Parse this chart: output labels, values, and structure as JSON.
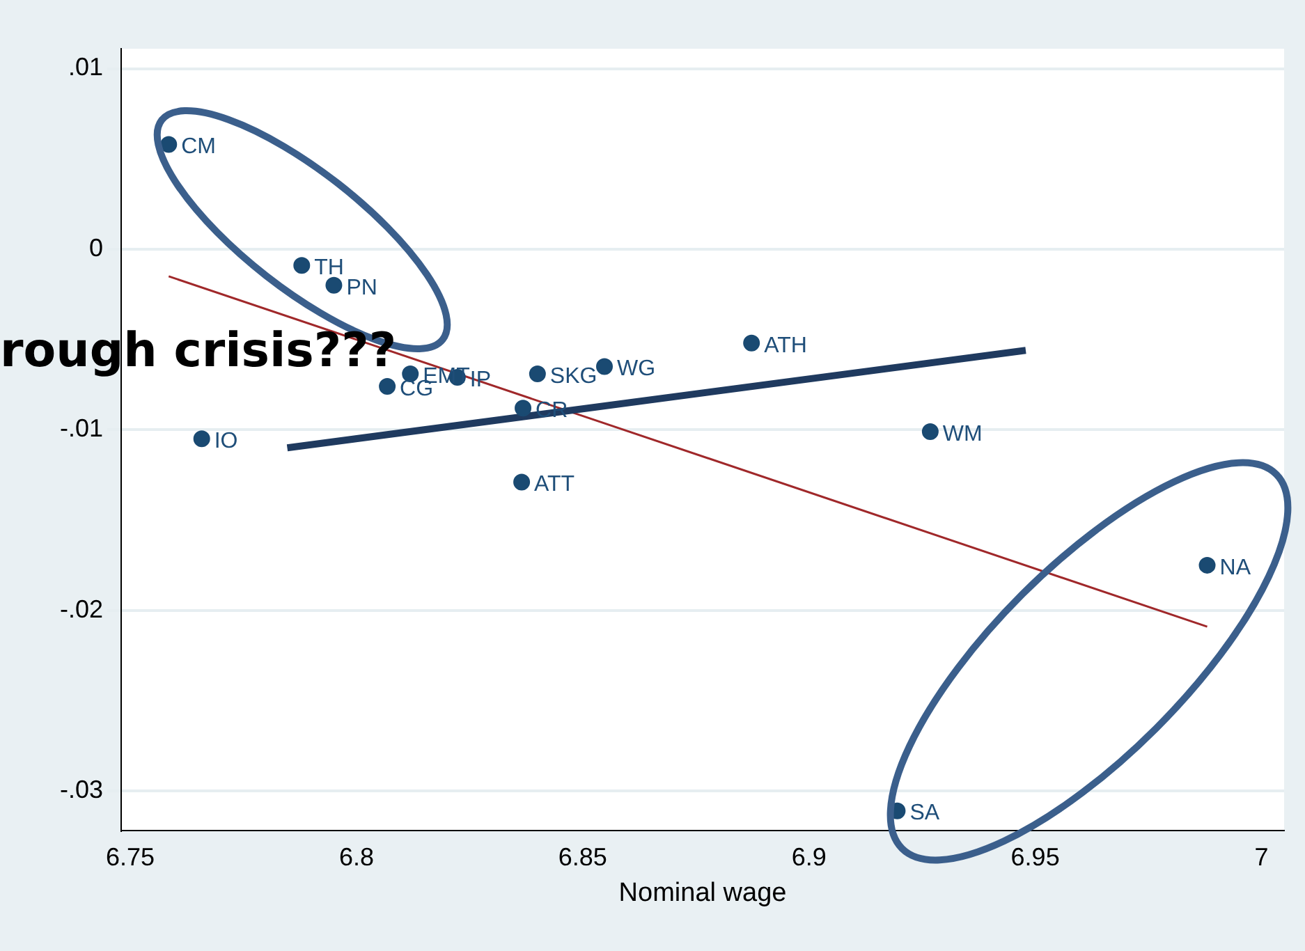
{
  "chart_data": {
    "type": "scatter",
    "xlabel": "Nominal wage",
    "xlim": [
      6.748,
      7.005
    ],
    "ylim": [
      -0.0322,
      0.0111
    ],
    "xticks": [
      6.75,
      6.8,
      6.85,
      6.9,
      6.95,
      7
    ],
    "yticks": [
      {
        "value": 0.01,
        "label": ".01"
      },
      {
        "value": 0,
        "label": "0"
      },
      {
        "value": -0.01,
        "label": "-.01"
      },
      {
        "value": -0.02,
        "label": "-.02"
      },
      {
        "value": -0.03,
        "label": "-.03"
      }
    ],
    "grid": "y",
    "legend": false,
    "marker": "circle",
    "series": [
      {
        "color": "#1a4a72",
        "x": [
          6.7585,
          6.7879,
          6.795,
          6.8119,
          6.8068,
          6.8223,
          6.84,
          6.8548,
          6.8368,
          6.7658,
          6.8365,
          6.8873,
          6.9268,
          6.988,
          6.9195
        ],
        "values": [
          0.0058,
          -0.0009,
          -0.002,
          -0.0069,
          -0.0076,
          -0.0071,
          -0.0069,
          -0.0065,
          -0.0088,
          -0.0105,
          -0.0129,
          -0.0052,
          -0.0101,
          -0.0175,
          -0.0311
        ]
      },
      {
        "type": "line",
        "marker": "none",
        "color": "#1f3a5f",
        "x": [
          6.7847,
          6.9479
        ],
        "values": [
          -0.011,
          -0.0056
        ]
      },
      {
        "type": "line",
        "marker": "none",
        "color": "#a0282a",
        "x": [
          6.7585,
          6.988
        ],
        "values": [
          -0.0015,
          -0.0209
        ]
      }
    ],
    "annotations": [
      {
        "text": "CM",
        "x": 6.7585,
        "y": 0.0058
      },
      {
        "text": "TH",
        "x": 6.7879,
        "y": -0.0009
      },
      {
        "text": "PN",
        "x": 6.795,
        "y": -0.002
      },
      {
        "text": "EMT",
        "x": 6.8119,
        "y": -0.0069
      },
      {
        "text": "CG",
        "x": 6.8068,
        "y": -0.0076
      },
      {
        "text": "IP",
        "x": 6.8223,
        "y": -0.0071
      },
      {
        "text": "SKG",
        "x": 6.84,
        "y": -0.0069
      },
      {
        "text": "WG",
        "x": 6.8548,
        "y": -0.0065
      },
      {
        "text": "CR",
        "x": 6.8368,
        "y": -0.0088
      },
      {
        "text": "IO",
        "x": 6.7658,
        "y": -0.0105
      },
      {
        "text": "ATT",
        "x": 6.8365,
        "y": -0.0129
      },
      {
        "text": "ATH",
        "x": 6.8873,
        "y": -0.0052
      },
      {
        "text": "WM",
        "x": 6.9268,
        "y": -0.0101
      },
      {
        "text": "NA",
        "x": 6.988,
        "y": -0.0175
      },
      {
        "text": "SA",
        "x": 6.9195,
        "y": -0.0311
      },
      "rough crisis???"
    ]
  }
}
